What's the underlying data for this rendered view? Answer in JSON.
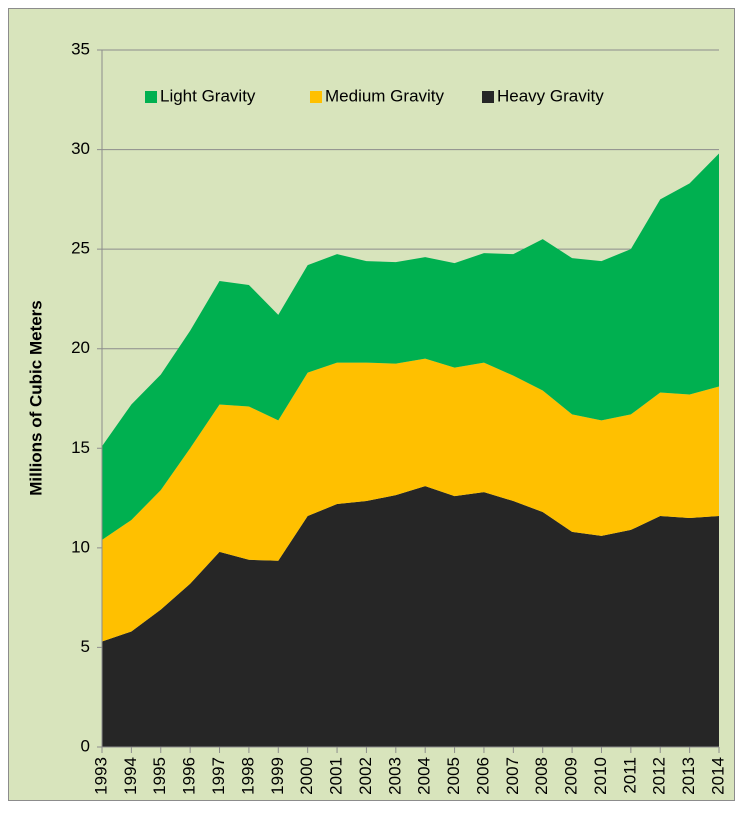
{
  "chart_data": {
    "type": "stacked_area",
    "ylabel": "Millions of Cubic Meters",
    "categories": [
      "1993",
      "1994",
      "1995",
      "1996",
      "1997",
      "1998",
      "1999",
      "2000",
      "2001",
      "2002",
      "2003",
      "2004",
      "2005",
      "2006",
      "2007",
      "2008",
      "2009",
      "2010",
      "2011",
      "2012",
      "2013",
      "2014"
    ],
    "series": [
      {
        "name": "Light Gravity",
        "color": "#00b050",
        "values": [
          4.7,
          5.8,
          5.8,
          5.9,
          6.2,
          6.1,
          5.3,
          5.4,
          5.45,
          5.1,
          5.1,
          5.1,
          5.25,
          5.5,
          6.1,
          7.6,
          7.85,
          8.0,
          8.3,
          9.7,
          10.6,
          11.7
        ]
      },
      {
        "name": "Medium Gravity",
        "color": "#ffc000",
        "values": [
          5.1,
          5.6,
          6.0,
          6.8,
          7.4,
          7.7,
          7.05,
          7.2,
          7.1,
          6.95,
          6.6,
          6.4,
          6.45,
          6.5,
          6.3,
          6.1,
          5.9,
          5.8,
          5.8,
          6.2,
          6.2,
          6.5
        ]
      },
      {
        "name": "Heavy Gravity",
        "color": "#262626",
        "values": [
          5.3,
          5.8,
          6.9,
          8.2,
          9.8,
          9.4,
          9.35,
          11.6,
          12.2,
          12.35,
          12.65,
          13.1,
          12.6,
          12.8,
          12.35,
          11.8,
          10.8,
          10.6,
          10.9,
          11.6,
          11.5,
          11.6
        ]
      }
    ],
    "ylim": [
      0,
      35
    ],
    "yticks": [
      0,
      5,
      10,
      15,
      20,
      25,
      30,
      35
    ],
    "grid": true,
    "legend": "top"
  }
}
